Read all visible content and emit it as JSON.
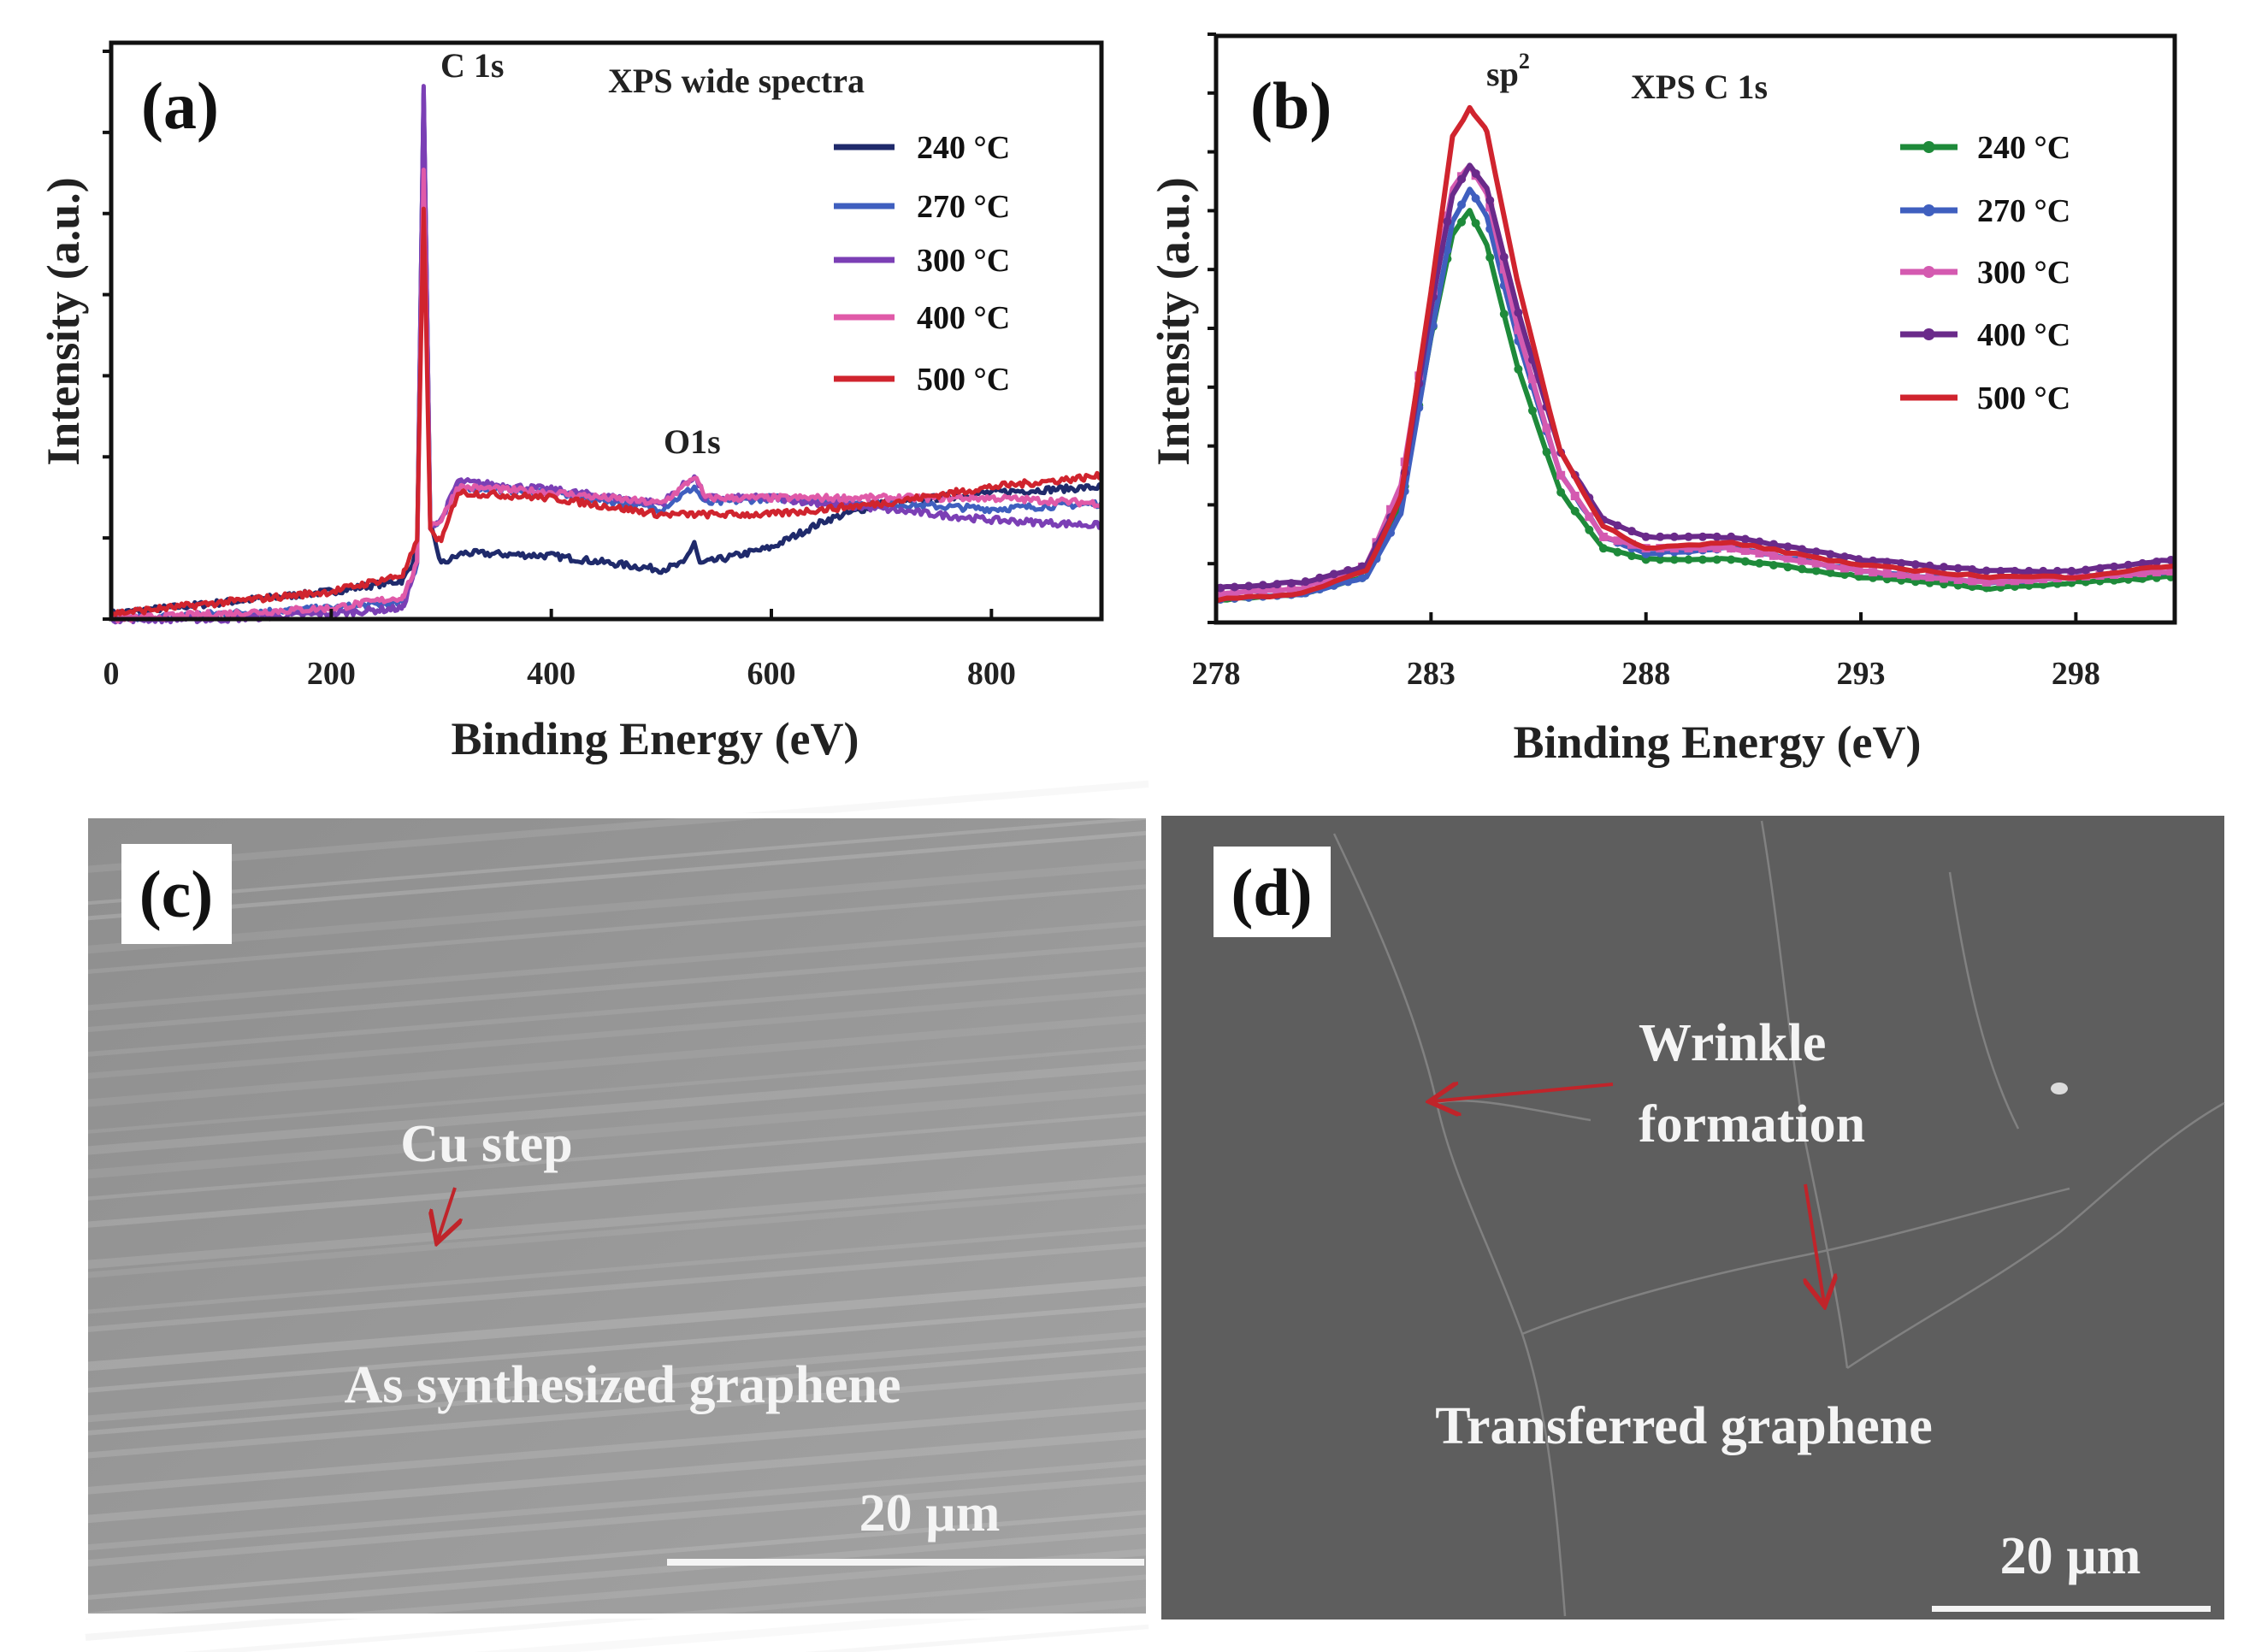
{
  "panels": {
    "a": {
      "label": "(a)",
      "title": "XPS wide spectra",
      "peak1": "C 1s",
      "peak2": "O1s",
      "xlabel": "Binding Energy (eV)",
      "ylabel": "Intensity (a.u.)"
    },
    "b": {
      "label": "(b)",
      "title": "XPS C 1s",
      "peak": "sp",
      "peak_sup": "2",
      "xlabel": "Binding Energy (eV)",
      "ylabel": "Intensity (a.u.)"
    },
    "c": {
      "label": "(c)",
      "annotation": "Cu step",
      "caption": "As synthesized graphene",
      "scale": "20 µm"
    },
    "d": {
      "label": "(d)",
      "annotation_line1": "Wrinkle",
      "annotation_line2": "formation",
      "caption": "Transferred graphene",
      "scale": "20 µm"
    }
  },
  "chart_data": [
    {
      "type": "line",
      "title": "XPS wide spectra",
      "xlabel": "Binding Energy (eV)",
      "ylabel": "Intensity (a.u.)",
      "xlim": [
        0,
        900
      ],
      "ylim": [
        0,
        1
      ],
      "xticks": [
        "0",
        "200",
        "400",
        "600",
        "800"
      ],
      "legend": "top-right",
      "series": [
        {
          "name": "240 °C",
          "color": "#1f2a6b",
          "points": [
            [
              0,
              0.01
            ],
            [
              100,
              0.03
            ],
            [
              200,
              0.05
            ],
            [
              265,
              0.07
            ],
            [
              278,
              0.12
            ],
            [
              284,
              0.96
            ],
            [
              290,
              0.17
            ],
            [
              300,
              0.1
            ],
            [
              320,
              0.12
            ],
            [
              400,
              0.115
            ],
            [
              500,
              0.09
            ],
            [
              520,
              0.1
            ],
            [
              530,
              0.14
            ],
            [
              535,
              0.1
            ],
            [
              600,
              0.13
            ],
            [
              650,
              0.18
            ],
            [
              700,
              0.21
            ],
            [
              800,
              0.23
            ],
            [
              900,
              0.24
            ]
          ]
        },
        {
          "name": "270 °C",
          "color": "#3f5fbf",
          "points": [
            [
              0,
              0.0
            ],
            [
              100,
              0.01
            ],
            [
              200,
              0.02
            ],
            [
              265,
              0.03
            ],
            [
              278,
              0.1
            ],
            [
              284,
              0.97
            ],
            [
              290,
              0.17
            ],
            [
              300,
              0.18
            ],
            [
              315,
              0.24
            ],
            [
              400,
              0.23
            ],
            [
              500,
              0.2
            ],
            [
              530,
              0.24
            ],
            [
              540,
              0.21
            ],
            [
              600,
              0.22
            ],
            [
              700,
              0.21
            ],
            [
              800,
              0.2
            ],
            [
              900,
              0.21
            ]
          ]
        },
        {
          "name": "300 °C",
          "color": "#7b3fb5",
          "points": [
            [
              0,
              0.0
            ],
            [
              100,
              0.0
            ],
            [
              200,
              0.01
            ],
            [
              265,
              0.02
            ],
            [
              278,
              0.1
            ],
            [
              284,
              0.97
            ],
            [
              290,
              0.17
            ],
            [
              300,
              0.18
            ],
            [
              315,
              0.25
            ],
            [
              400,
              0.235
            ],
            [
              500,
              0.21
            ],
            [
              530,
              0.26
            ],
            [
              540,
              0.22
            ],
            [
              600,
              0.22
            ],
            [
              700,
              0.2
            ],
            [
              800,
              0.18
            ],
            [
              900,
              0.17
            ]
          ]
        },
        {
          "name": "400 °C",
          "color": "#e05aa8",
          "points": [
            [
              0,
              0.0
            ],
            [
              100,
              0.01
            ],
            [
              200,
              0.02
            ],
            [
              265,
              0.04
            ],
            [
              278,
              0.1
            ],
            [
              284,
              0.82
            ],
            [
              290,
              0.17
            ],
            [
              300,
              0.18
            ],
            [
              315,
              0.24
            ],
            [
              400,
              0.23
            ],
            [
              500,
              0.21
            ],
            [
              520,
              0.24
            ],
            [
              530,
              0.26
            ],
            [
              540,
              0.22
            ],
            [
              600,
              0.22
            ],
            [
              700,
              0.22
            ],
            [
              800,
              0.22
            ],
            [
              900,
              0.21
            ]
          ]
        },
        {
          "name": "500 °C",
          "color": "#d0242e",
          "points": [
            [
              0,
              0.01
            ],
            [
              100,
              0.03
            ],
            [
              200,
              0.05
            ],
            [
              265,
              0.08
            ],
            [
              278,
              0.14
            ],
            [
              284,
              0.75
            ],
            [
              290,
              0.16
            ],
            [
              300,
              0.14
            ],
            [
              315,
              0.23
            ],
            [
              400,
              0.22
            ],
            [
              500,
              0.19
            ],
            [
              600,
              0.19
            ],
            [
              700,
              0.21
            ],
            [
              800,
              0.24
            ],
            [
              900,
              0.26
            ]
          ]
        }
      ]
    },
    {
      "type": "line",
      "title": "XPS C 1s",
      "xlabel": "Binding Energy (eV)",
      "ylabel": "Intensity (a.u.)",
      "xlim": [
        278,
        300.3
      ],
      "ylim": [
        0,
        1
      ],
      "xticks": [
        "278",
        "283",
        "288",
        "293",
        "298"
      ],
      "legend": "top-right",
      "series": [
        {
          "name": "240 °C",
          "color": "#1e8a3a",
          "marker": "circle",
          "points": [
            [
              278,
              0.04
            ],
            [
              280,
              0.05
            ],
            [
              281.5,
              0.08
            ],
            [
              282.3,
              0.2
            ],
            [
              283,
              0.5
            ],
            [
              283.5,
              0.68
            ],
            [
              283.9,
              0.72
            ],
            [
              284.3,
              0.66
            ],
            [
              285,
              0.45
            ],
            [
              286,
              0.23
            ],
            [
              287,
              0.13
            ],
            [
              288,
              0.11
            ],
            [
              290,
              0.11
            ],
            [
              293,
              0.08
            ],
            [
              296,
              0.06
            ],
            [
              298,
              0.07
            ],
            [
              300.3,
              0.08
            ]
          ]
        },
        {
          "name": "270 °C",
          "color": "#3f5fbf",
          "marker": "diamond",
          "points": [
            [
              278,
              0.04
            ],
            [
              280,
              0.05
            ],
            [
              281.5,
              0.08
            ],
            [
              282.3,
              0.19
            ],
            [
              283,
              0.5
            ],
            [
              283.5,
              0.7
            ],
            [
              283.9,
              0.76
            ],
            [
              284.3,
              0.71
            ],
            [
              285,
              0.5
            ],
            [
              286,
              0.26
            ],
            [
              287,
              0.15
            ],
            [
              288,
              0.12
            ],
            [
              290,
              0.13
            ],
            [
              293,
              0.09
            ],
            [
              296,
              0.07
            ],
            [
              298,
              0.08
            ],
            [
              300.3,
              0.09
            ]
          ]
        },
        {
          "name": "300 °C",
          "color": "#d45ab0",
          "marker": "square",
          "points": [
            [
              278,
              0.05
            ],
            [
              280,
              0.06
            ],
            [
              281.5,
              0.1
            ],
            [
              282.3,
              0.24
            ],
            [
              283,
              0.56
            ],
            [
              283.5,
              0.76
            ],
            [
              283.9,
              0.8
            ],
            [
              284.3,
              0.75
            ],
            [
              285,
              0.52
            ],
            [
              286,
              0.26
            ],
            [
              287,
              0.15
            ],
            [
              288,
              0.13
            ],
            [
              290,
              0.13
            ],
            [
              293,
              0.09
            ],
            [
              296,
              0.07
            ],
            [
              298,
              0.08
            ],
            [
              300.3,
              0.09
            ]
          ]
        },
        {
          "name": "400 °C",
          "color": "#6a2a8a",
          "marker": "triangle",
          "points": [
            [
              278,
              0.06
            ],
            [
              280,
              0.07
            ],
            [
              281.5,
              0.1
            ],
            [
              282.3,
              0.22
            ],
            [
              283,
              0.55
            ],
            [
              283.5,
              0.75
            ],
            [
              283.9,
              0.8
            ],
            [
              284.3,
              0.76
            ],
            [
              285,
              0.55
            ],
            [
              286,
              0.3
            ],
            [
              287,
              0.18
            ],
            [
              288,
              0.15
            ],
            [
              290,
              0.15
            ],
            [
              293,
              0.11
            ],
            [
              296,
              0.09
            ],
            [
              298,
              0.09
            ],
            [
              300.3,
              0.11
            ]
          ]
        },
        {
          "name": "500 °C",
          "color": "#d0242e",
          "marker": "none",
          "points": [
            [
              278,
              0.04
            ],
            [
              280,
              0.05
            ],
            [
              281.5,
              0.09
            ],
            [
              282.3,
              0.22
            ],
            [
              283,
              0.58
            ],
            [
              283.5,
              0.85
            ],
            [
              283.9,
              0.9
            ],
            [
              284.3,
              0.86
            ],
            [
              285,
              0.6
            ],
            [
              286,
              0.3
            ],
            [
              287,
              0.17
            ],
            [
              288,
              0.13
            ],
            [
              290,
              0.14
            ],
            [
              293,
              0.1
            ],
            [
              296,
              0.08
            ],
            [
              298,
              0.08
            ],
            [
              300.3,
              0.1
            ]
          ]
        }
      ]
    }
  ]
}
